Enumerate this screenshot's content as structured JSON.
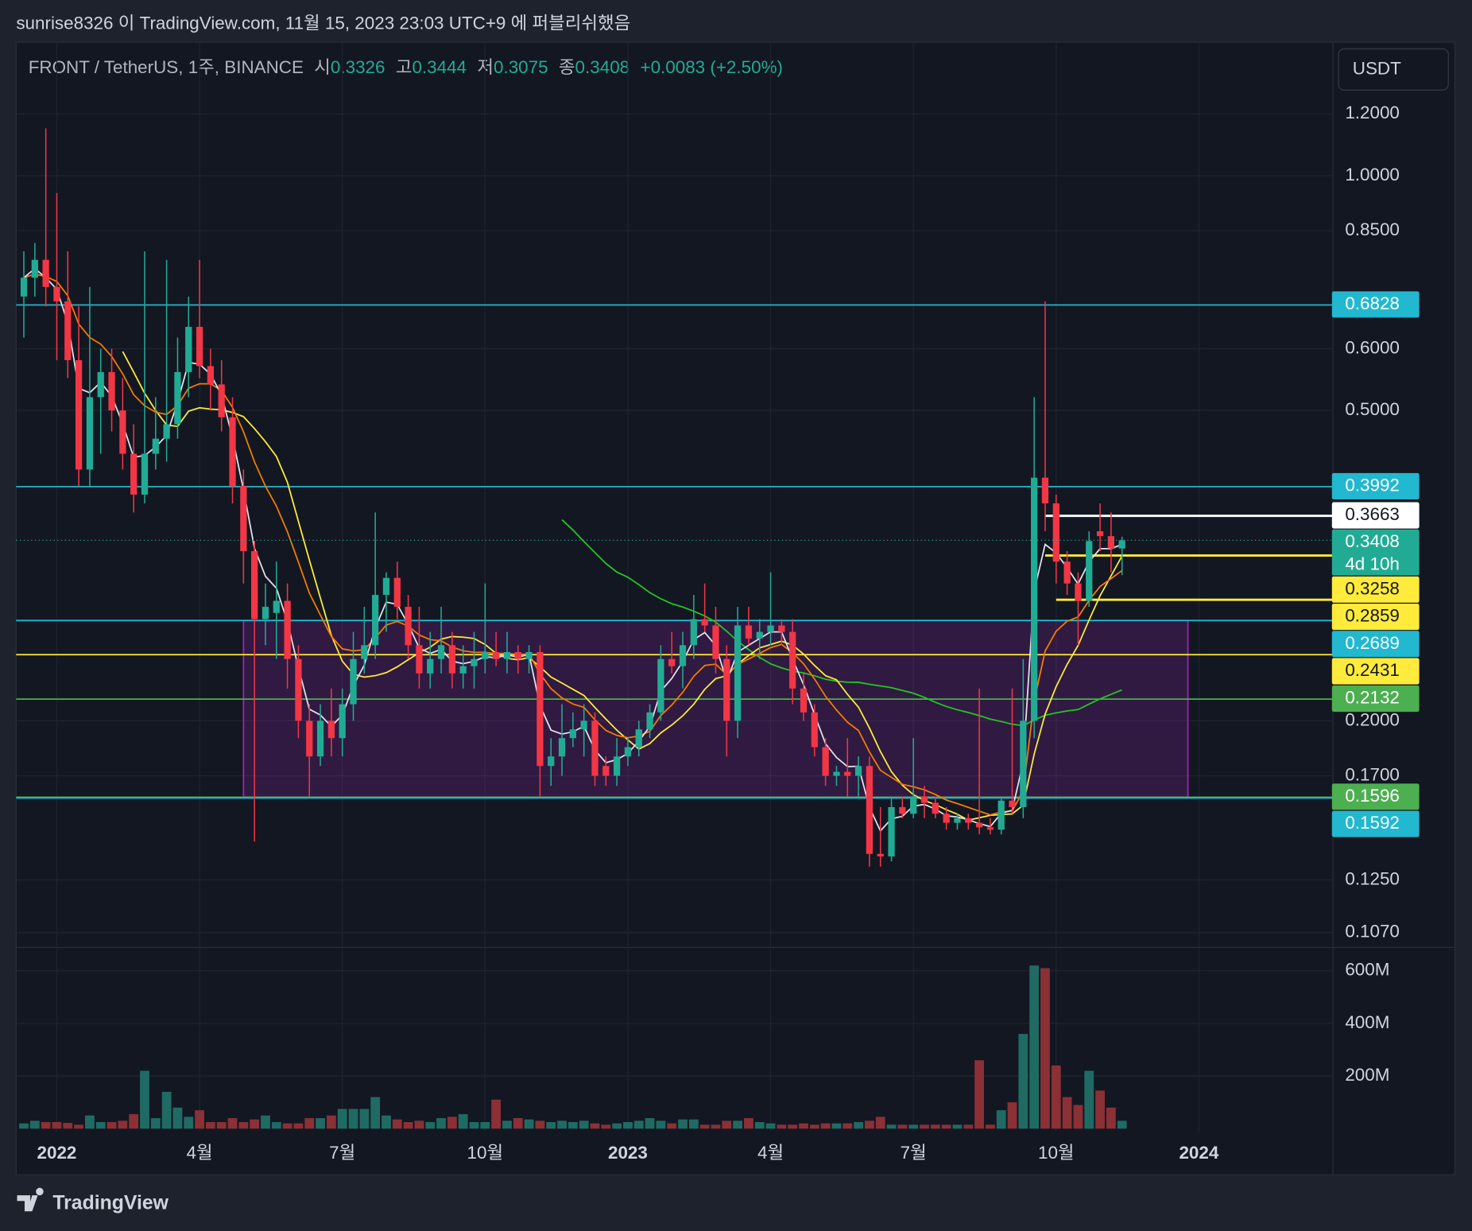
{
  "header": {
    "publisher": "sunrise8326 이 TradingView.com, 11월 15, 2023 23:03 UTC+9 에 퍼블리쉬했음"
  },
  "footer": {
    "brand": "TradingView"
  },
  "chart_data": {
    "type": "candlestick",
    "symbol": "FRONT / TetherUS, 1주, BINANCE",
    "open_label": "시",
    "high_label": "고",
    "low_label": "저",
    "close_label": "종",
    "change_label": "+0.0083 (+2.50%)",
    "countdown": "4d 10h",
    "currency": "USDT",
    "up_color": "#22ab94",
    "down_color": "#f23645",
    "log_scale": true,
    "grid": true,
    "open": [
      0.7,
      0.74,
      0.78,
      0.72,
      0.69,
      0.58,
      0.42,
      0.52,
      0.56,
      0.5,
      0.44,
      0.39,
      0.44,
      0.46,
      0.48,
      0.56,
      0.64,
      0.57,
      0.54,
      0.49,
      0.4,
      0.33,
      0.27,
      0.275,
      0.285,
      0.24,
      0.2,
      0.18,
      0.2,
      0.19,
      0.21,
      0.24,
      0.25,
      0.29,
      0.305,
      0.28,
      0.25,
      0.23,
      0.24,
      0.25,
      0.23,
      0.235,
      0.24,
      0.245,
      0.24,
      0.245,
      0.24,
      0.245,
      0.175,
      0.18,
      0.19,
      0.195,
      0.2,
      0.175,
      0.17,
      0.18,
      0.185,
      0.195,
      0.205,
      0.24,
      0.235,
      0.25,
      0.27,
      0.265,
      0.24,
      0.2,
      0.265,
      0.255,
      0.26,
      0.265,
      0.26,
      0.22,
      0.205,
      0.185,
      0.17,
      0.172,
      0.17,
      0.175,
      0.135,
      0.134,
      0.155,
      0.152,
      0.16,
      0.157,
      0.152,
      0.148,
      0.15,
      0.148,
      0.146,
      0.145,
      0.158,
      0.155,
      0.2,
      0.41,
      0.38,
      0.32,
      0.3,
      0.285,
      0.35,
      0.345,
      0.3326
    ],
    "high": [
      0.8,
      0.82,
      1.15,
      0.95,
      0.8,
      0.68,
      0.72,
      0.6,
      0.6,
      0.55,
      0.48,
      0.8,
      0.52,
      0.78,
      0.62,
      0.7,
      0.78,
      0.6,
      0.58,
      0.52,
      0.42,
      0.34,
      0.3,
      0.32,
      0.3,
      0.25,
      0.21,
      0.21,
      0.22,
      0.22,
      0.26,
      0.28,
      0.37,
      0.31,
      0.32,
      0.29,
      0.28,
      0.26,
      0.28,
      0.26,
      0.25,
      0.26,
      0.3,
      0.26,
      0.26,
      0.25,
      0.25,
      0.25,
      0.19,
      0.21,
      0.205,
      0.21,
      0.205,
      0.18,
      0.19,
      0.19,
      0.2,
      0.21,
      0.25,
      0.26,
      0.26,
      0.29,
      0.3,
      0.28,
      0.25,
      0.28,
      0.28,
      0.27,
      0.31,
      0.27,
      0.27,
      0.23,
      0.21,
      0.19,
      0.175,
      0.19,
      0.18,
      0.18,
      0.155,
      0.16,
      0.16,
      0.19,
      0.165,
      0.16,
      0.155,
      0.152,
      0.152,
      0.22,
      0.15,
      0.16,
      0.22,
      0.24,
      0.52,
      0.69,
      0.39,
      0.33,
      0.31,
      0.35,
      0.38,
      0.37,
      0.3444
    ],
    "low": [
      0.62,
      0.7,
      0.68,
      0.58,
      0.55,
      0.4,
      0.4,
      0.44,
      0.47,
      0.42,
      0.37,
      0.38,
      0.42,
      0.43,
      0.46,
      0.52,
      0.55,
      0.5,
      0.47,
      0.38,
      0.3,
      0.14,
      0.25,
      0.24,
      0.22,
      0.19,
      0.16,
      0.175,
      0.18,
      0.18,
      0.2,
      0.23,
      0.24,
      0.26,
      0.27,
      0.24,
      0.22,
      0.22,
      0.23,
      0.22,
      0.22,
      0.22,
      0.23,
      0.235,
      0.23,
      0.23,
      0.23,
      0.16,
      0.165,
      0.17,
      0.185,
      0.18,
      0.165,
      0.165,
      0.165,
      0.175,
      0.18,
      0.19,
      0.2,
      0.23,
      0.22,
      0.24,
      0.26,
      0.23,
      0.18,
      0.19,
      0.25,
      0.24,
      0.25,
      0.25,
      0.21,
      0.2,
      0.18,
      0.165,
      0.165,
      0.16,
      0.16,
      0.13,
      0.13,
      0.132,
      0.15,
      0.15,
      0.15,
      0.15,
      0.145,
      0.145,
      0.145,
      0.143,
      0.143,
      0.143,
      0.152,
      0.15,
      0.19,
      0.35,
      0.3,
      0.29,
      0.25,
      0.28,
      0.33,
      0.31,
      0.3075
    ],
    "close": [
      0.74,
      0.78,
      0.72,
      0.69,
      0.58,
      0.42,
      0.52,
      0.56,
      0.5,
      0.44,
      0.39,
      0.44,
      0.46,
      0.48,
      0.56,
      0.64,
      0.57,
      0.54,
      0.49,
      0.4,
      0.33,
      0.27,
      0.28,
      0.285,
      0.24,
      0.2,
      0.18,
      0.2,
      0.19,
      0.21,
      0.24,
      0.25,
      0.29,
      0.305,
      0.28,
      0.25,
      0.23,
      0.24,
      0.25,
      0.23,
      0.235,
      0.24,
      0.245,
      0.24,
      0.245,
      0.24,
      0.245,
      0.175,
      0.18,
      0.19,
      0.195,
      0.2,
      0.17,
      0.17,
      0.18,
      0.185,
      0.195,
      0.205,
      0.24,
      0.235,
      0.25,
      0.27,
      0.265,
      0.24,
      0.2,
      0.265,
      0.255,
      0.26,
      0.265,
      0.26,
      0.22,
      0.205,
      0.185,
      0.17,
      0.172,
      0.17,
      0.175,
      0.135,
      0.134,
      0.155,
      0.152,
      0.16,
      0.157,
      0.152,
      0.148,
      0.15,
      0.148,
      0.146,
      0.145,
      0.158,
      0.155,
      0.2,
      0.41,
      0.38,
      0.32,
      0.3,
      0.285,
      0.34,
      0.345,
      0.3326,
      0.3408
    ],
    "volume": [
      20,
      30,
      25,
      25,
      22,
      15,
      50,
      25,
      25,
      30,
      55,
      220,
      40,
      140,
      80,
      45,
      70,
      25,
      25,
      40,
      25,
      35,
      50,
      25,
      20,
      20,
      40,
      40,
      50,
      75,
      75,
      75,
      120,
      50,
      35,
      25,
      30,
      25,
      40,
      45,
      55,
      25,
      25,
      110,
      30,
      40,
      35,
      30,
      25,
      30,
      25,
      30,
      20,
      15,
      20,
      25,
      30,
      40,
      30,
      20,
      35,
      35,
      15,
      15,
      30,
      30,
      40,
      25,
      20,
      15,
      15,
      20,
      15,
      20,
      20,
      20,
      25,
      30,
      45,
      15,
      15,
      15,
      15,
      15,
      15,
      15,
      15,
      260,
      15,
      70,
      100,
      360,
      620,
      610,
      240,
      120,
      90,
      220,
      145,
      80,
      30
    ],
    "xlim": [
      -0.7,
      119.2
    ],
    "xticks": [
      {
        "value": 3,
        "label": "2022"
      },
      {
        "value": 16,
        "label": "4월"
      },
      {
        "value": 29,
        "label": "7월"
      },
      {
        "value": 42,
        "label": "10월"
      },
      {
        "value": 55,
        "label": "2023"
      },
      {
        "value": 68,
        "label": "4월"
      },
      {
        "value": 81,
        "label": "7월"
      },
      {
        "value": 94,
        "label": "10월"
      },
      {
        "value": 107,
        "label": "2024"
      }
    ],
    "ylim": [
      0.1027,
      1.483
    ],
    "yticks": [
      {
        "value": 1.2,
        "label": "1.2000"
      },
      {
        "value": 1.0,
        "label": "1.0000"
      },
      {
        "value": 0.85,
        "label": "0.8500"
      },
      {
        "value": 0.6,
        "label": "0.6000"
      },
      {
        "value": 0.5,
        "label": "0.5000"
      },
      {
        "value": 0.2,
        "label": "0.2000"
      },
      {
        "value": 0.17,
        "label": "0.1700"
      },
      {
        "value": 0.125,
        "label": "0.1250"
      },
      {
        "value": 0.107,
        "label": "0.1070"
      }
    ],
    "vlim": [
      0,
      678
    ],
    "vticks": [
      {
        "value": 600,
        "label": "600M"
      },
      {
        "value": 400,
        "label": "400M"
      },
      {
        "value": 200,
        "label": "200M"
      }
    ],
    "box": {
      "top": 0.2689,
      "bottom": 0.1596,
      "start": 20,
      "end": 106
    },
    "levels": [
      {
        "value": 0.6828,
        "color": "#22b8cf"
      },
      {
        "value": 0.3992,
        "color": "#22b8cf"
      },
      {
        "value": 0.3663,
        "color": "#ffffff",
        "start": 93
      },
      {
        "value": 0.3258,
        "color": "#ffeb3b",
        "start": 93
      },
      {
        "value": 0.2859,
        "color": "#ffeb3b",
        "start": 94
      },
      {
        "value": 0.2689,
        "color": "#22b8cf"
      },
      {
        "value": 0.2431,
        "color": "#ffeb3b"
      },
      {
        "value": 0.2132,
        "color": "#4caf50"
      },
      {
        "value": 0.1596,
        "color": "#4caf50"
      },
      {
        "value": 0.1592,
        "color": "#22b8cf"
      }
    ]
  }
}
